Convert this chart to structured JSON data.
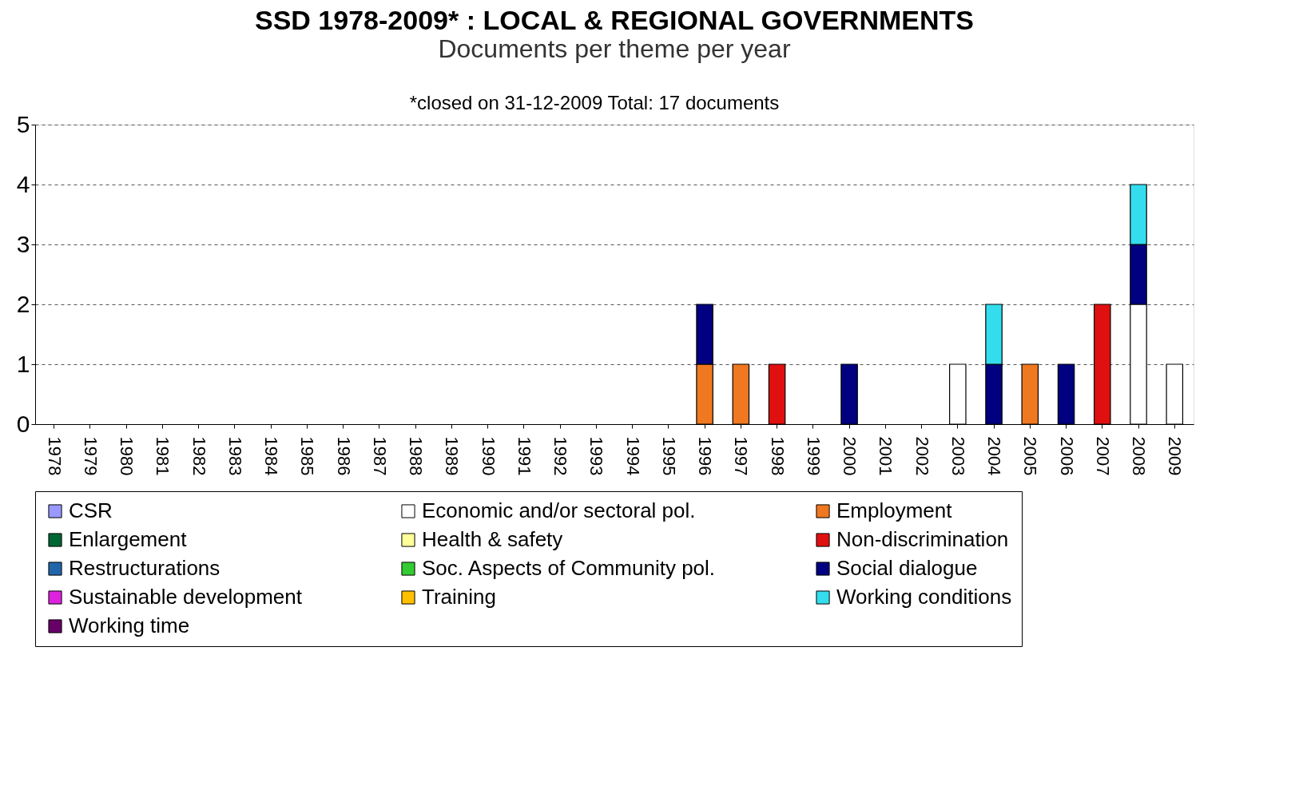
{
  "chart_data": {
    "type": "bar",
    "stacked": true,
    "title": "SSD 1978-2009* :  LOCAL & REGIONAL GOVERNMENTS",
    "subtitle": "Documents per theme per year",
    "annotations": [
      "*closed on 31-12-2009",
      "Total: 17 documents"
    ],
    "categories": [
      "1978",
      "1979",
      "1980",
      "1981",
      "1982",
      "1983",
      "1984",
      "1985",
      "1986",
      "1987",
      "1988",
      "1989",
      "1990",
      "1991",
      "1992",
      "1993",
      "1994",
      "1995",
      "1996",
      "1997",
      "1998",
      "1999",
      "2000",
      "2001",
      "2002",
      "2003",
      "2004",
      "2005",
      "2006",
      "2007",
      "2008",
      "2009"
    ],
    "series": [
      {
        "name": "CSR",
        "color": "#9999ff",
        "values": [
          0,
          0,
          0,
          0,
          0,
          0,
          0,
          0,
          0,
          0,
          0,
          0,
          0,
          0,
          0,
          0,
          0,
          0,
          0,
          0,
          0,
          0,
          0,
          0,
          0,
          0,
          0,
          0,
          0,
          0,
          0,
          0
        ]
      },
      {
        "name": "Economic and/or sectoral pol.",
        "color": "#ffffff",
        "values": [
          0,
          0,
          0,
          0,
          0,
          0,
          0,
          0,
          0,
          0,
          0,
          0,
          0,
          0,
          0,
          0,
          0,
          0,
          0,
          0,
          0,
          0,
          0,
          0,
          0,
          1,
          0,
          0,
          0,
          0,
          2,
          1
        ]
      },
      {
        "name": "Employment",
        "color": "#f07820",
        "values": [
          0,
          0,
          0,
          0,
          0,
          0,
          0,
          0,
          0,
          0,
          0,
          0,
          0,
          0,
          0,
          0,
          0,
          0,
          1,
          1,
          0,
          0,
          0,
          0,
          0,
          0,
          0,
          1,
          0,
          0,
          0,
          0
        ]
      },
      {
        "name": "Enlargement",
        "color": "#006633",
        "values": [
          0,
          0,
          0,
          0,
          0,
          0,
          0,
          0,
          0,
          0,
          0,
          0,
          0,
          0,
          0,
          0,
          0,
          0,
          0,
          0,
          0,
          0,
          0,
          0,
          0,
          0,
          0,
          0,
          0,
          0,
          0,
          0
        ]
      },
      {
        "name": "Health & safety",
        "color": "#ffff99",
        "values": [
          0,
          0,
          0,
          0,
          0,
          0,
          0,
          0,
          0,
          0,
          0,
          0,
          0,
          0,
          0,
          0,
          0,
          0,
          0,
          0,
          0,
          0,
          0,
          0,
          0,
          0,
          0,
          0,
          0,
          0,
          0,
          0
        ]
      },
      {
        "name": "Non-discrimination",
        "color": "#e01010",
        "values": [
          0,
          0,
          0,
          0,
          0,
          0,
          0,
          0,
          0,
          0,
          0,
          0,
          0,
          0,
          0,
          0,
          0,
          0,
          0,
          0,
          1,
          0,
          0,
          0,
          0,
          0,
          0,
          0,
          0,
          2,
          0,
          0
        ]
      },
      {
        "name": "Restructurations",
        "color": "#2266aa",
        "values": [
          0,
          0,
          0,
          0,
          0,
          0,
          0,
          0,
          0,
          0,
          0,
          0,
          0,
          0,
          0,
          0,
          0,
          0,
          0,
          0,
          0,
          0,
          0,
          0,
          0,
          0,
          0,
          0,
          0,
          0,
          0,
          0
        ]
      },
      {
        "name": "Soc. Aspects of Community pol.",
        "color": "#33cc33",
        "values": [
          0,
          0,
          0,
          0,
          0,
          0,
          0,
          0,
          0,
          0,
          0,
          0,
          0,
          0,
          0,
          0,
          0,
          0,
          0,
          0,
          0,
          0,
          0,
          0,
          0,
          0,
          0,
          0,
          0,
          0,
          0,
          0
        ]
      },
      {
        "name": "Social dialogue",
        "color": "#000080",
        "values": [
          0,
          0,
          0,
          0,
          0,
          0,
          0,
          0,
          0,
          0,
          0,
          0,
          0,
          0,
          0,
          0,
          0,
          0,
          1,
          0,
          0,
          0,
          1,
          0,
          0,
          0,
          1,
          0,
          1,
          0,
          1,
          0
        ]
      },
      {
        "name": "Sustainable development",
        "color": "#dd22dd",
        "values": [
          0,
          0,
          0,
          0,
          0,
          0,
          0,
          0,
          0,
          0,
          0,
          0,
          0,
          0,
          0,
          0,
          0,
          0,
          0,
          0,
          0,
          0,
          0,
          0,
          0,
          0,
          0,
          0,
          0,
          0,
          0,
          0
        ]
      },
      {
        "name": "Training",
        "color": "#ffc000",
        "values": [
          0,
          0,
          0,
          0,
          0,
          0,
          0,
          0,
          0,
          0,
          0,
          0,
          0,
          0,
          0,
          0,
          0,
          0,
          0,
          0,
          0,
          0,
          0,
          0,
          0,
          0,
          0,
          0,
          0,
          0,
          0,
          0
        ]
      },
      {
        "name": "Working conditions",
        "color": "#33ddee",
        "values": [
          0,
          0,
          0,
          0,
          0,
          0,
          0,
          0,
          0,
          0,
          0,
          0,
          0,
          0,
          0,
          0,
          0,
          0,
          0,
          0,
          0,
          0,
          0,
          0,
          0,
          0,
          1,
          0,
          0,
          0,
          1,
          0
        ]
      },
      {
        "name": "Working time",
        "color": "#660066",
        "values": [
          0,
          0,
          0,
          0,
          0,
          0,
          0,
          0,
          0,
          0,
          0,
          0,
          0,
          0,
          0,
          0,
          0,
          0,
          0,
          0,
          0,
          0,
          0,
          0,
          0,
          0,
          0,
          0,
          0,
          0,
          0,
          0
        ]
      }
    ],
    "ylim": [
      0,
      5
    ],
    "yticks": [
      0,
      1,
      2,
      3,
      4,
      5
    ],
    "grid": "y",
    "legend": "bottom"
  }
}
